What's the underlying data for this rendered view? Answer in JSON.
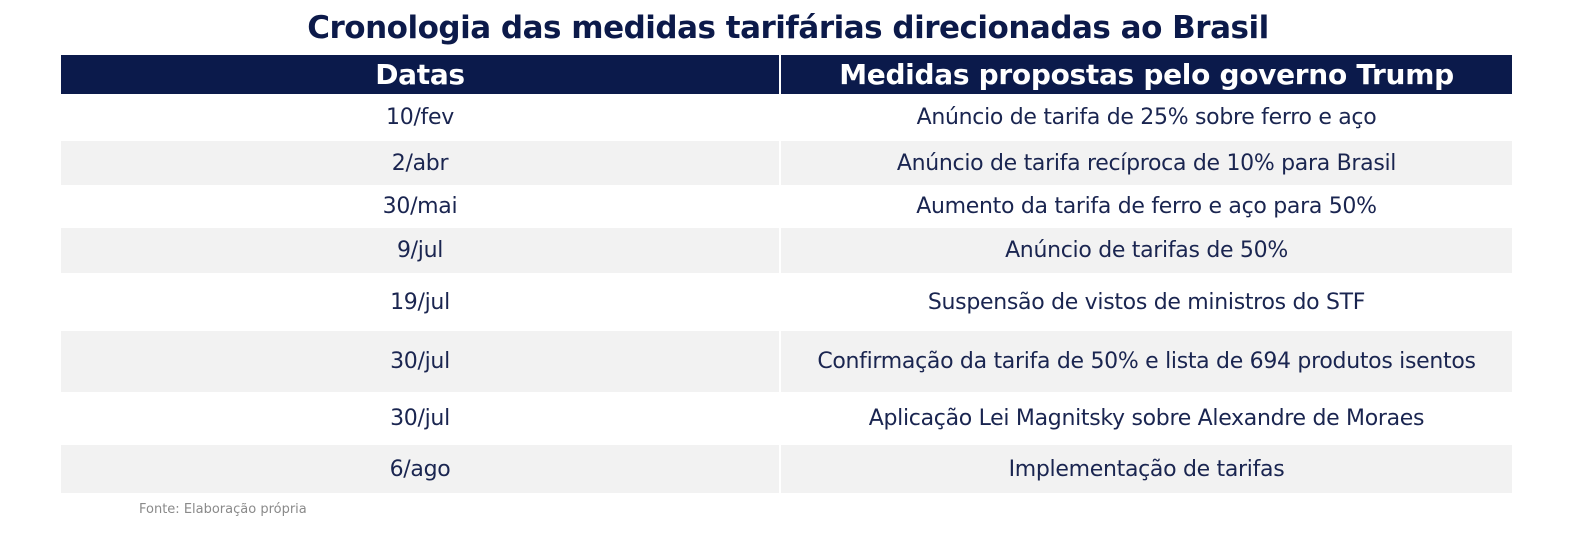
{
  "title": "Cronologia das medidas tarifárias direcionadas ao Brasil",
  "table": {
    "headers": [
      "Datas",
      "Medidas propostas pelo governo Trump"
    ],
    "rows": [
      {
        "date": "10/fev",
        "measure": "Anúncio de tarifa de 25% sobre ferro e aço"
      },
      {
        "date": "2/abr",
        "measure": "Anúncio de tarifa recíproca de 10% para Brasil"
      },
      {
        "date": "30/mai",
        "measure": "Aumento da tarifa de ferro e aço para 50%"
      },
      {
        "date": "9/jul",
        "measure": "Anúncio de tarifas de 50%"
      },
      {
        "date": "19/jul",
        "measure": "Suspensão de vistos de ministros do STF"
      },
      {
        "date": "30/jul",
        "measure": "Confirmação da tarifa de 50% e lista de 694 produtos isentos"
      },
      {
        "date": "30/jul",
        "measure": "Aplicação Lei Magnitsky sobre Alexandre de Moraes"
      },
      {
        "date": "6/ago",
        "measure": "Implementação de tarifas"
      }
    ]
  },
  "source": "Fonte: Elaboração própria",
  "colors": {
    "header_bg": "#0b1a4b",
    "header_text": "#ffffff",
    "title_text": "#0c1a4a",
    "row_shade": "#f2f2f2",
    "body_text": "#1a2550",
    "source_text": "#8a8a8a"
  }
}
